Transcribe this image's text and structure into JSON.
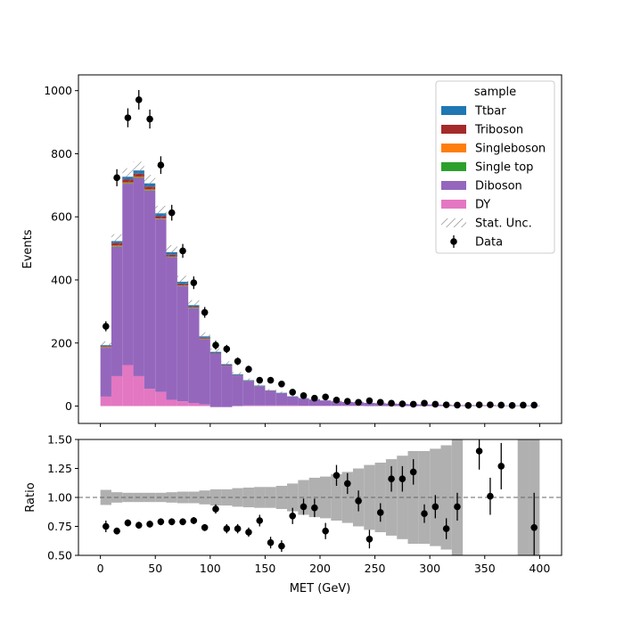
{
  "chart_data": [
    {
      "type": "bar",
      "subtype": "stacked-histogram",
      "xlabel": "",
      "ylabel": "Events",
      "xlim": [
        -20,
        420
      ],
      "ylim": [
        -55,
        1050
      ],
      "yticks": [
        0,
        200,
        400,
        600,
        800,
        1000
      ],
      "bin_edges": [
        0,
        10,
        20,
        30,
        40,
        50,
        60,
        70,
        80,
        90,
        100,
        110,
        120,
        130,
        140,
        150,
        160,
        170,
        180,
        190,
        200,
        210,
        220,
        230,
        240,
        250,
        260,
        270,
        280,
        290,
        300,
        310,
        320,
        330,
        340,
        350,
        360,
        370,
        380,
        390,
        400
      ],
      "legend": {
        "title": "sample",
        "placement": "top-right",
        "entries": [
          "Ttbar",
          "Triboson",
          "Singleboson",
          "Single top",
          "Diboson",
          "DY",
          "Stat. Unc.",
          "Data"
        ]
      },
      "series": [
        {
          "name": "DY",
          "color": "#e377c2",
          "values": [
            30,
            95,
            130,
            95,
            55,
            45,
            20,
            15,
            10,
            5,
            -3,
            -3,
            0,
            2,
            2,
            2,
            2,
            2,
            1,
            1,
            1,
            1,
            1,
            1,
            0,
            0,
            0,
            0,
            0,
            0,
            0,
            0,
            0,
            0,
            0,
            0,
            0,
            0,
            0,
            0
          ]
        },
        {
          "name": "Diboson",
          "color": "#9467bd",
          "values": [
            155,
            410,
            575,
            628,
            628,
            548,
            452,
            365,
            300,
            207,
            169,
            131,
            97,
            77,
            60,
            46,
            39,
            28,
            23,
            20,
            17,
            14,
            12,
            11,
            10,
            9,
            8,
            7,
            6,
            5,
            5,
            4,
            3,
            3,
            3,
            3,
            2,
            2,
            2,
            2
          ]
        },
        {
          "name": "Single top",
          "color": "#2ca02c",
          "values": [
            1,
            2,
            2,
            2,
            2,
            1,
            1,
            1,
            1,
            1,
            0,
            0,
            0,
            0,
            0,
            0,
            0,
            0,
            0,
            0,
            0,
            0,
            0,
            0,
            0,
            0,
            0,
            0,
            0,
            0,
            0,
            0,
            0,
            0,
            0,
            0,
            0,
            0,
            0,
            0
          ]
        },
        {
          "name": "Singleboson",
          "color": "#ff7f0e",
          "values": [
            1,
            2,
            2,
            2,
            2,
            1,
            1,
            1,
            1,
            1,
            0,
            0,
            0,
            0,
            0,
            0,
            0,
            0,
            0,
            0,
            0,
            0,
            0,
            0,
            0,
            0,
            0,
            0,
            0,
            0,
            0,
            0,
            0,
            0,
            0,
            0,
            0,
            0,
            0,
            0
          ]
        },
        {
          "name": "Triboson",
          "color": "#a52a2a",
          "values": [
            3,
            8,
            10,
            10,
            9,
            7,
            6,
            5,
            3,
            3,
            2,
            2,
            1,
            1,
            1,
            1,
            0,
            0,
            0,
            0,
            0,
            0,
            0,
            0,
            0,
            0,
            0,
            0,
            0,
            0,
            0,
            0,
            0,
            0,
            0,
            0,
            0,
            0,
            0,
            0
          ]
        },
        {
          "name": "Ttbar",
          "color": "#1f77b4",
          "values": [
            3,
            6,
            8,
            10,
            10,
            9,
            8,
            7,
            5,
            4,
            4,
            3,
            3,
            2,
            2,
            1,
            1,
            1,
            1,
            0,
            0,
            0,
            0,
            0,
            0,
            0,
            0,
            0,
            0,
            0,
            0,
            0,
            0,
            0,
            0,
            0,
            0,
            0,
            0,
            0
          ]
        }
      ],
      "stat_unc": {
        "name": "Stat. Unc.",
        "values": [
          12,
          22,
          27,
          28,
          27,
          24,
          22,
          19,
          16,
          13,
          11,
          9,
          7,
          6,
          5,
          4,
          4,
          3,
          3,
          3,
          2,
          2,
          2,
          2,
          2,
          2,
          2,
          1,
          1,
          1,
          1,
          1,
          1,
          1,
          1,
          1,
          1,
          1,
          1,
          1
        ]
      },
      "data": {
        "name": "Data",
        "x": [
          5,
          15,
          25,
          35,
          45,
          55,
          65,
          75,
          85,
          95,
          105,
          115,
          125,
          135,
          145,
          155,
          165,
          175,
          185,
          195,
          205,
          215,
          225,
          235,
          245,
          255,
          265,
          275,
          285,
          295,
          305,
          315,
          325,
          335,
          345,
          355,
          365,
          375,
          385,
          395
        ],
        "y": [
          253,
          724,
          914,
          971,
          910,
          764,
          613,
          492,
          391,
          297,
          193,
          181,
          142,
          117,
          82,
          82,
          70,
          44,
          33,
          25,
          29,
          19,
          15,
          12,
          17,
          12,
          9,
          7,
          6,
          9,
          6,
          4,
          3,
          2,
          4,
          4,
          3,
          2,
          3,
          3
        ],
        "yerr": [
          16,
          27,
          30,
          31,
          30,
          28,
          25,
          22,
          20,
          17,
          14,
          13,
          12,
          11,
          9,
          9,
          8,
          7,
          6,
          5,
          5,
          4,
          4,
          3,
          4,
          3,
          3,
          3,
          2,
          3,
          2,
          2,
          2,
          1,
          2,
          2,
          2,
          1,
          2,
          2
        ]
      }
    },
    {
      "type": "scatter",
      "subtype": "ratio-panel",
      "xlabel": "MET (GeV)",
      "ylabel": "Ratio",
      "xlim": [
        -20,
        420
      ],
      "ylim": [
        0.5,
        1.5
      ],
      "xticks": [
        0,
        50,
        100,
        150,
        200,
        250,
        300,
        350,
        400
      ],
      "yticks": [
        "0.50",
        "0.75",
        "1.00",
        "1.25",
        "1.50"
      ],
      "reference_line": 1.0,
      "uncertainty_band": {
        "color": "#b0b0b0",
        "half_width": [
          0.065,
          0.045,
          0.04,
          0.04,
          0.04,
          0.04,
          0.045,
          0.05,
          0.05,
          0.06,
          0.07,
          0.07,
          0.08,
          0.085,
          0.09,
          0.09,
          0.1,
          0.12,
          0.15,
          0.17,
          0.18,
          0.2,
          0.22,
          0.25,
          0.28,
          0.3,
          0.33,
          0.36,
          0.4,
          0.4,
          0.42,
          0.45,
          0.5,
          0.6,
          0.6,
          0.6,
          0.6,
          0.6,
          0.6,
          0.6
        ],
        "hidden_bins": [
          33,
          37
        ]
      },
      "points": {
        "x": [
          5,
          15,
          25,
          35,
          45,
          55,
          65,
          75,
          85,
          95,
          105,
          115,
          125,
          135,
          145,
          155,
          165,
          175,
          185,
          195,
          205,
          215,
          225,
          235,
          245,
          255,
          265,
          275,
          285,
          295,
          305,
          315,
          325,
          345,
          355,
          365,
          395
        ],
        "y": [
          0.75,
          0.71,
          0.78,
          0.76,
          0.77,
          0.79,
          0.79,
          0.79,
          0.8,
          0.74,
          0.9,
          0.73,
          0.73,
          0.7,
          0.8,
          0.61,
          0.58,
          0.84,
          0.92,
          0.91,
          0.71,
          1.19,
          1.12,
          0.97,
          0.64,
          0.87,
          1.16,
          1.16,
          1.22,
          0.86,
          0.92,
          0.73,
          0.92,
          1.4,
          1.01,
          1.27,
          0.74
        ],
        "yerr": [
          0.05,
          0.03,
          0.03,
          0.03,
          0.03,
          0.03,
          0.03,
          0.03,
          0.03,
          0.03,
          0.04,
          0.04,
          0.04,
          0.04,
          0.05,
          0.05,
          0.05,
          0.07,
          0.07,
          0.08,
          0.07,
          0.09,
          0.09,
          0.09,
          0.08,
          0.08,
          0.11,
          0.11,
          0.11,
          0.08,
          0.1,
          0.09,
          0.12,
          0.16,
          0.16,
          0.2,
          0.3
        ]
      }
    }
  ]
}
